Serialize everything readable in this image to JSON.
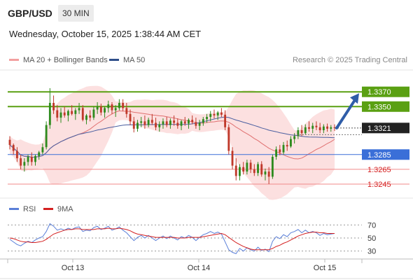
{
  "header": {
    "symbol": "GBP/USD",
    "interval": "30 MIN",
    "timestamp": "Wednesday, October 15, 2025 1:38:44 AM CET"
  },
  "legend": {
    "ma_bollinger": "MA 20 + Bollinger Bands",
    "ma50": "MA 50",
    "copyright": "Research © 2025 Trading Central"
  },
  "rsi_legend": {
    "rsi": "RSI",
    "ma9": "9MA"
  },
  "colors": {
    "resistance": "#5aa012",
    "support": "#3a6fd8",
    "support_light": "#f08a8a",
    "candle_up": "#2e8b1e",
    "candle_down": "#c0392b",
    "bollinger_fill": "#fbdada",
    "ma50": "#4b5fa0",
    "ma20": "#e07070",
    "rsi": "#5a7fd8",
    "rsi_ma": "#d42020",
    "current_price": "#222222",
    "arrow": "#2f5da8"
  },
  "chart_data": {
    "type": "candlestick",
    "x_ticks": [
      "Oct 13",
      "Oct 14",
      "Oct 15"
    ],
    "price_range": [
      1.3226,
      1.3392
    ],
    "current_price": 1.3321,
    "levels": [
      {
        "label": "1.3370",
        "value": 1.337,
        "kind": "resistance"
      },
      {
        "label": "1.3350",
        "value": 1.335,
        "kind": "resistance"
      },
      {
        "label": "1.3285",
        "value": 1.3285,
        "kind": "pivot"
      },
      {
        "label": "1.3265",
        "value": 1.3265,
        "kind": "support"
      },
      {
        "label": "1.3245",
        "value": 1.3245,
        "kind": "support"
      }
    ],
    "current_label": "1.3321",
    "forecast": "up",
    "candles": [
      [
        1.3305,
        1.331,
        1.3292,
        1.3298
      ],
      [
        1.3298,
        1.33,
        1.3285,
        1.329
      ],
      [
        1.329,
        1.3295,
        1.3275,
        1.328
      ],
      [
        1.328,
        1.3285,
        1.3265,
        1.327
      ],
      [
        1.327,
        1.328,
        1.3262,
        1.3275
      ],
      [
        1.3275,
        1.3285,
        1.327,
        1.3282
      ],
      [
        1.3282,
        1.3288,
        1.327,
        1.3275
      ],
      [
        1.3275,
        1.3285,
        1.327,
        1.3283
      ],
      [
        1.3283,
        1.329,
        1.3278,
        1.3288
      ],
      [
        1.3288,
        1.33,
        1.3285,
        1.3295
      ],
      [
        1.3295,
        1.333,
        1.3292,
        1.3325
      ],
      [
        1.3325,
        1.3375,
        1.332,
        1.3355
      ],
      [
        1.3355,
        1.3365,
        1.334,
        1.3345
      ],
      [
        1.3345,
        1.3352,
        1.333,
        1.3335
      ],
      [
        1.3335,
        1.3348,
        1.3328,
        1.3342
      ],
      [
        1.3342,
        1.335,
        1.3335,
        1.3338
      ],
      [
        1.3338,
        1.3346,
        1.333,
        1.3344
      ],
      [
        1.3344,
        1.3352,
        1.3338,
        1.334
      ],
      [
        1.334,
        1.3348,
        1.3332,
        1.3345
      ],
      [
        1.3345,
        1.3355,
        1.334,
        1.3348
      ],
      [
        1.3348,
        1.3352,
        1.333,
        1.3332
      ],
      [
        1.3332,
        1.334,
        1.3326,
        1.3338
      ],
      [
        1.3338,
        1.3345,
        1.333,
        1.3335
      ],
      [
        1.3335,
        1.335,
        1.3332,
        1.3346
      ],
      [
        1.3346,
        1.3356,
        1.334,
        1.335
      ],
      [
        1.335,
        1.3354,
        1.3338,
        1.3342
      ],
      [
        1.3342,
        1.335,
        1.3335,
        1.3348
      ],
      [
        1.3348,
        1.3358,
        1.3342,
        1.3353
      ],
      [
        1.3353,
        1.3356,
        1.334,
        1.3345
      ],
      [
        1.3345,
        1.3352,
        1.3336,
        1.3348
      ],
      [
        1.3348,
        1.336,
        1.3345,
        1.3355
      ],
      [
        1.3355,
        1.336,
        1.3344,
        1.3348
      ],
      [
        1.3348,
        1.3355,
        1.3335,
        1.334
      ],
      [
        1.334,
        1.3346,
        1.3325,
        1.333
      ],
      [
        1.333,
        1.3336,
        1.3315,
        1.332
      ],
      [
        1.332,
        1.3332,
        1.3316,
        1.3328
      ],
      [
        1.3328,
        1.3336,
        1.3322,
        1.333
      ],
      [
        1.333,
        1.3338,
        1.332,
        1.3325
      ],
      [
        1.3325,
        1.3335,
        1.3322,
        1.3332
      ],
      [
        1.3332,
        1.334,
        1.3325,
        1.3328
      ],
      [
        1.3328,
        1.3335,
        1.3318,
        1.3322
      ],
      [
        1.3322,
        1.333,
        1.3316,
        1.3326
      ],
      [
        1.3326,
        1.3334,
        1.332,
        1.333
      ],
      [
        1.333,
        1.3336,
        1.3322,
        1.3325
      ],
      [
        1.3325,
        1.3334,
        1.332,
        1.3331
      ],
      [
        1.3331,
        1.3338,
        1.3324,
        1.3328
      ],
      [
        1.3328,
        1.3334,
        1.332,
        1.3324
      ],
      [
        1.3324,
        1.3332,
        1.3318,
        1.333
      ],
      [
        1.333,
        1.3336,
        1.3324,
        1.3327
      ],
      [
        1.3327,
        1.3334,
        1.332,
        1.3332
      ],
      [
        1.3332,
        1.3338,
        1.3326,
        1.3329
      ],
      [
        1.3329,
        1.3335,
        1.332,
        1.3324
      ],
      [
        1.3324,
        1.3332,
        1.3318,
        1.3328
      ],
      [
        1.3328,
        1.3336,
        1.3324,
        1.3333
      ],
      [
        1.3333,
        1.334,
        1.3328,
        1.3336
      ],
      [
        1.3336,
        1.3344,
        1.333,
        1.334
      ],
      [
        1.334,
        1.3346,
        1.3334,
        1.3338
      ],
      [
        1.3338,
        1.3344,
        1.3332,
        1.3342
      ],
      [
        1.3342,
        1.3348,
        1.3336,
        1.3339
      ],
      [
        1.3339,
        1.3345,
        1.3318,
        1.3322
      ],
      [
        1.3322,
        1.3326,
        1.3285,
        1.329
      ],
      [
        1.329,
        1.3295,
        1.3265,
        1.327
      ],
      [
        1.327,
        1.328,
        1.325,
        1.3256
      ],
      [
        1.3256,
        1.3272,
        1.325,
        1.3268
      ],
      [
        1.3268,
        1.3275,
        1.3258,
        1.3262
      ],
      [
        1.3262,
        1.3278,
        1.3258,
        1.3274
      ],
      [
        1.3274,
        1.3278,
        1.326,
        1.3265
      ],
      [
        1.3265,
        1.3272,
        1.3256,
        1.326
      ],
      [
        1.326,
        1.3275,
        1.3256,
        1.3272
      ],
      [
        1.3272,
        1.3276,
        1.3255,
        1.3258
      ],
      [
        1.3258,
        1.3266,
        1.325,
        1.3262
      ],
      [
        1.3262,
        1.3268,
        1.3245,
        1.3255
      ],
      [
        1.3255,
        1.3285,
        1.3252,
        1.3282
      ],
      [
        1.3282,
        1.3296,
        1.3278,
        1.3292
      ],
      [
        1.3292,
        1.3298,
        1.3284,
        1.3288
      ],
      [
        1.3288,
        1.3302,
        1.3285,
        1.3298
      ],
      [
        1.3298,
        1.3304,
        1.329,
        1.3296
      ],
      [
        1.3296,
        1.331,
        1.3294,
        1.3306
      ],
      [
        1.3306,
        1.3314,
        1.33,
        1.331
      ],
      [
        1.331,
        1.3322,
        1.3306,
        1.3318
      ],
      [
        1.3318,
        1.3325,
        1.331,
        1.3314
      ],
      [
        1.3314,
        1.3326,
        1.3312,
        1.3322
      ],
      [
        1.3322,
        1.333,
        1.3316,
        1.332
      ],
      [
        1.332,
        1.3328,
        1.3314,
        1.3324
      ],
      [
        1.3324,
        1.333,
        1.3318,
        1.3322
      ],
      [
        1.3322,
        1.3328,
        1.3314,
        1.3318
      ],
      [
        1.3318,
        1.3326,
        1.3314,
        1.3323
      ],
      [
        1.3323,
        1.3327,
        1.3316,
        1.332
      ],
      [
        1.332,
        1.3325,
        1.3316,
        1.3322
      ],
      [
        1.3322,
        1.3326,
        1.3317,
        1.3321
      ]
    ],
    "rsi": {
      "ticks": [
        70,
        50,
        30
      ],
      "range": [
        20,
        80
      ],
      "values": [
        48,
        44,
        40,
        38,
        42,
        45,
        43,
        47,
        50,
        52,
        60,
        72,
        68,
        62,
        64,
        62,
        65,
        63,
        66,
        67,
        60,
        62,
        61,
        66,
        68,
        63,
        65,
        68,
        62,
        64,
        67,
        62,
        58,
        52,
        46,
        51,
        54,
        50,
        54,
        50,
        46,
        50,
        53,
        49,
        53,
        50,
        47,
        52,
        50,
        54,
        51,
        46,
        51,
        55,
        57,
        60,
        57,
        59,
        56,
        44,
        32,
        28,
        26,
        34,
        30,
        35,
        32,
        30,
        36,
        31,
        33,
        29,
        45,
        52,
        49,
        55,
        52,
        58,
        60,
        63,
        58,
        62,
        58,
        60,
        58,
        54,
        57,
        55,
        56,
        57
      ],
      "ma": [
        50,
        49,
        47,
        45,
        44,
        44,
        43,
        43,
        44,
        45,
        48,
        52,
        56,
        58,
        60,
        62,
        63,
        63,
        64,
        64,
        63,
        63,
        63,
        63,
        64,
        64,
        64,
        65,
        64,
        64,
        65,
        64,
        63,
        61,
        58,
        56,
        55,
        54,
        53,
        52,
        51,
        51,
        51,
        51,
        51,
        51,
        50,
        50,
        50,
        51,
        51,
        51,
        51,
        52,
        53,
        54,
        55,
        56,
        57,
        55,
        51,
        47,
        43,
        40,
        37,
        35,
        33,
        32,
        32,
        32,
        32,
        32,
        34,
        37,
        39,
        42,
        44,
        47,
        50,
        53,
        55,
        57,
        58,
        59,
        59,
        58,
        58,
        57,
        57,
        57
      ]
    }
  }
}
